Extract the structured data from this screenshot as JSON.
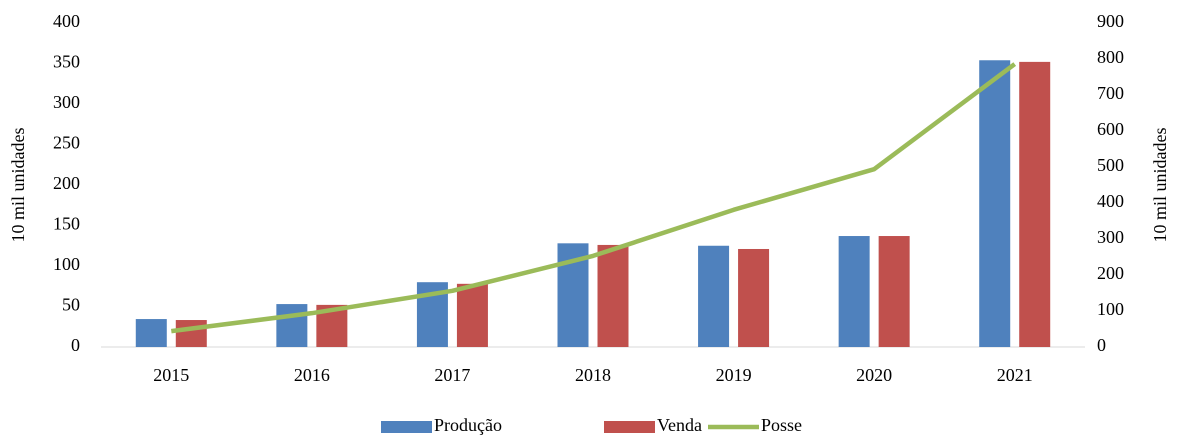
{
  "chart_data": {
    "type": "bar",
    "categories": [
      "2015",
      "2016",
      "2017",
      "2018",
      "2019",
      "2020",
      "2021"
    ],
    "series": [
      {
        "name": "Produção",
        "color": "#4f81bd",
        "values": [
          34.5,
          53,
          80,
          128,
          125,
          137,
          354
        ]
      },
      {
        "name": "Venda",
        "color": "#c0504d",
        "values": [
          33.3,
          52,
          78,
          126,
          121,
          137,
          352
        ]
      },
      {
        "name": "Posse",
        "color": "#9bbb59",
        "type": "line",
        "axis": "y2",
        "values": [
          44,
          94,
          156,
          253,
          381,
          494,
          786
        ]
      }
    ],
    "ylabel": "10 mil unidades",
    "y2label": "10 mil unidades",
    "ylim": [
      0,
      400
    ],
    "yticks": [
      0,
      50,
      100,
      150,
      200,
      250,
      300,
      350,
      400
    ],
    "y2lim": [
      0,
      900
    ],
    "y2ticks": [
      0,
      100,
      200,
      300,
      400,
      500,
      600,
      700,
      800,
      900
    ],
    "grid": false,
    "legend": "bottom"
  }
}
